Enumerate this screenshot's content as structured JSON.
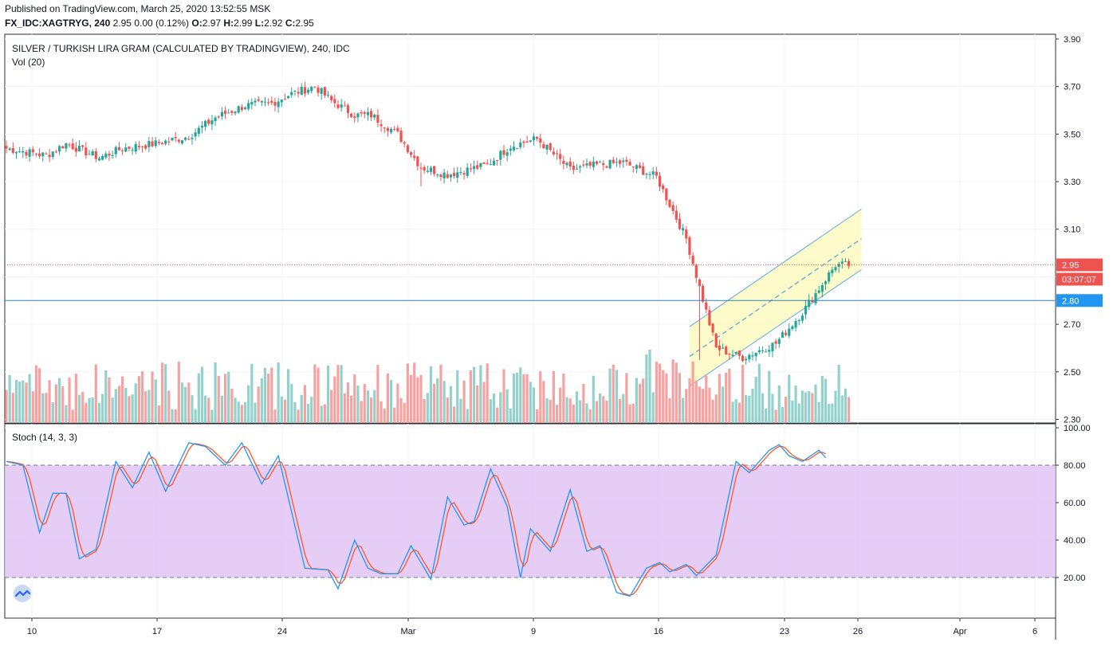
{
  "header": {
    "published": "Published on TradingView.com, March 25, 2020 13:52:55 MSK",
    "symbol": "FX_IDC:XAGTRYG, 240",
    "last": "2.95",
    "change": "0.00 (0.12%)",
    "o_label": "O:",
    "o": "2.97",
    "h_label": "H:",
    "h": "2.99",
    "l_label": "L:",
    "l": "2.92",
    "c_label": "C:",
    "c": "2.95"
  },
  "main_pane": {
    "title": "SILVER / TURKISH LIRA GRAM (CALCULATED BY TRADINGVIEW), 240, IDC",
    "volume_label": "Vol (20)",
    "price_ticks": [
      "3.90",
      "3.70",
      "3.50",
      "3.30",
      "3.10",
      "2.70",
      "2.50",
      "2.30"
    ],
    "last_price_tag": "2.95",
    "countdown_tag": "03:07:07",
    "hline_tag": "2.80"
  },
  "stoch_pane": {
    "title": "Stoch (14, 3, 3)",
    "ticks": [
      "100.00",
      "80.00",
      "60.00",
      "40.00",
      "20.00"
    ]
  },
  "time_axis": [
    "10",
    "17",
    "24",
    "Mar",
    "9",
    "16",
    "23",
    "26",
    "Apr",
    "6"
  ],
  "colors": {
    "up": "#26a69a",
    "down": "#ef5350",
    "vol_up": "#93d1cb",
    "vol_down": "#f5a3a2",
    "stoch_k": "#2196f3",
    "stoch_d": "#ff5722",
    "stoch_band": "#e1c4f5",
    "channel": "#57a8de",
    "channel_fill": "#fdfbc3",
    "hline": "#2e86b5",
    "price_line": "#ef5350"
  },
  "chart_data": {
    "type": "candlestick",
    "price_range": [
      2.285,
      3.92
    ],
    "stoch_range": [
      0,
      100
    ],
    "horizontal_line": 2.8,
    "last_price": 2.95,
    "channel": {
      "upper": [
        [
          0.0,
          2.69
        ],
        [
          1.0,
          3.185
        ]
      ],
      "lower": [
        [
          0.0,
          2.44
        ],
        [
          1.0,
          2.93
        ]
      ],
      "mid": [
        [
          0.0,
          2.565
        ],
        [
          1.0,
          3.06
        ]
      ],
      "start_candle": 206,
      "end_candle": 253
    },
    "anchors": [
      [
        0,
        3.44
      ],
      [
        12,
        3.41
      ],
      [
        18,
        3.46
      ],
      [
        28,
        3.4
      ],
      [
        35,
        3.44
      ],
      [
        45,
        3.46
      ],
      [
        55,
        3.49
      ],
      [
        63,
        3.57
      ],
      [
        72,
        3.62
      ],
      [
        80,
        3.63
      ],
      [
        86,
        3.67
      ],
      [
        93,
        3.7
      ],
      [
        98,
        3.64
      ],
      [
        105,
        3.58
      ],
      [
        110,
        3.58
      ],
      [
        118,
        3.5
      ],
      [
        125,
        3.36
      ],
      [
        133,
        3.33
      ],
      [
        145,
        3.37
      ],
      [
        152,
        3.45
      ],
      [
        160,
        3.48
      ],
      [
        170,
        3.35
      ],
      [
        178,
        3.37
      ],
      [
        186,
        3.38
      ],
      [
        196,
        3.32
      ],
      [
        205,
        3.06
      ],
      [
        214,
        2.6
      ],
      [
        222,
        2.56
      ],
      [
        232,
        2.62
      ],
      [
        240,
        2.75
      ],
      [
        250,
        2.95
      ],
      [
        254,
        2.95
      ]
    ],
    "stoch_k_pts": [
      [
        0,
        82
      ],
      [
        5,
        80
      ],
      [
        10,
        44
      ],
      [
        14,
        65
      ],
      [
        18,
        65
      ],
      [
        22,
        30
      ],
      [
        27,
        35
      ],
      [
        33,
        82
      ],
      [
        38,
        68
      ],
      [
        43,
        87
      ],
      [
        48,
        66
      ],
      [
        55,
        92
      ],
      [
        60,
        90
      ],
      [
        66,
        80
      ],
      [
        71,
        92
      ],
      [
        77,
        70
      ],
      [
        82,
        85
      ],
      [
        90,
        25
      ],
      [
        97,
        24
      ],
      [
        100,
        14
      ],
      [
        105,
        40
      ],
      [
        109,
        25
      ],
      [
        113,
        22
      ],
      [
        118,
        22
      ],
      [
        122,
        37
      ],
      [
        128,
        19
      ],
      [
        133,
        63
      ],
      [
        138,
        48
      ],
      [
        141,
        50
      ],
      [
        146,
        78
      ],
      [
        151,
        58
      ],
      [
        155,
        20
      ],
      [
        158,
        46
      ],
      [
        164,
        34
      ],
      [
        170,
        67
      ],
      [
        175,
        34
      ],
      [
        179,
        37
      ],
      [
        184,
        12
      ],
      [
        188,
        10
      ],
      [
        193,
        25
      ],
      [
        197,
        28
      ],
      [
        200,
        23
      ],
      [
        205,
        27
      ],
      [
        208,
        21
      ],
      [
        214,
        32
      ],
      [
        220,
        82
      ],
      [
        224,
        76
      ],
      [
        230,
        88
      ],
      [
        233,
        91
      ],
      [
        236,
        85
      ],
      [
        240,
        82
      ],
      [
        245,
        88
      ],
      [
        247,
        84
      ]
    ],
    "volume_profile": "relative",
    "volume_max": 1.0
  }
}
